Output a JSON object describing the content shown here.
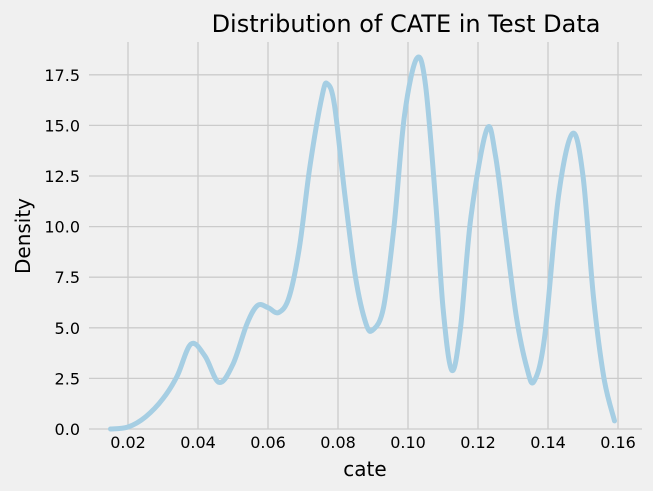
{
  "chart_data": {
    "type": "line",
    "subtype": "kde",
    "title": "Distribution of CATE in Test Data",
    "xlabel": "cate",
    "ylabel": "Density",
    "xlim": [
      0.009,
      0.167
    ],
    "ylim": [
      0.0,
      19.1
    ],
    "grid": true,
    "legend": null,
    "line_color": "#a6cee3",
    "background_color": "#f0f0f0",
    "grid_color": "#cbcbcb",
    "x_ticks": [
      0.02,
      0.04,
      0.06,
      0.08,
      0.1,
      0.12,
      0.14,
      0.16
    ],
    "x_tick_labels": [
      "0.02",
      "0.04",
      "0.06",
      "0.08",
      "0.10",
      "0.12",
      "0.14",
      "0.16"
    ],
    "y_ticks": [
      0.0,
      2.5,
      5.0,
      7.5,
      10.0,
      12.5,
      15.0,
      17.5
    ],
    "y_tick_labels": [
      "0.0",
      "2.5",
      "5.0",
      "7.5",
      "10.0",
      "12.5",
      "15.0",
      "17.5"
    ],
    "series": [
      {
        "name": "cate",
        "x": [
          0.015,
          0.02,
          0.025,
          0.03,
          0.034,
          0.038,
          0.042,
          0.046,
          0.05,
          0.054,
          0.057,
          0.06,
          0.063,
          0.066,
          0.069,
          0.072,
          0.0755,
          0.077,
          0.079,
          0.082,
          0.085,
          0.088,
          0.09,
          0.093,
          0.096,
          0.099,
          0.1025,
          0.105,
          0.108,
          0.11,
          0.1125,
          0.115,
          0.118,
          0.1225,
          0.125,
          0.128,
          0.131,
          0.134,
          0.136,
          0.139,
          0.143,
          0.147,
          0.15,
          0.153,
          0.156,
          0.159
        ],
        "y": [
          0.0,
          0.1,
          0.6,
          1.5,
          2.6,
          4.2,
          3.6,
          2.3,
          3.2,
          5.2,
          6.1,
          6.0,
          5.75,
          6.5,
          9.0,
          13.0,
          16.5,
          17.05,
          16.0,
          11.5,
          7.5,
          5.2,
          4.9,
          6.0,
          10.0,
          15.5,
          18.3,
          17.0,
          11.0,
          6.0,
          2.9,
          5.0,
          10.5,
          14.8,
          13.5,
          9.5,
          5.5,
          3.0,
          2.35,
          4.5,
          11.5,
          14.6,
          12.5,
          6.5,
          2.5,
          0.4
        ]
      }
    ],
    "peaks": [
      {
        "x": 0.038,
        "y": 4.2
      },
      {
        "x": 0.057,
        "y": 6.1
      },
      {
        "x": 0.077,
        "y": 17.05
      },
      {
        "x": 0.1025,
        "y": 18.3
      },
      {
        "x": 0.1225,
        "y": 14.8
      },
      {
        "x": 0.147,
        "y": 14.6
      }
    ]
  }
}
